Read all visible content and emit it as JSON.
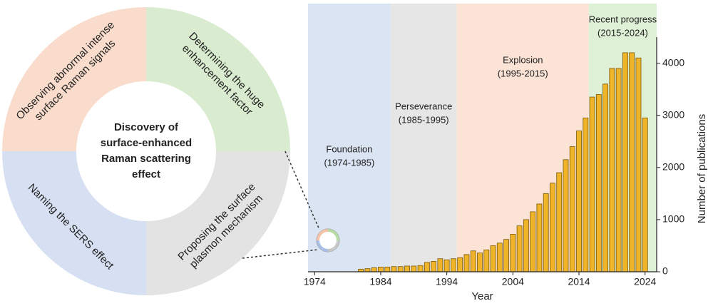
{
  "diagram": {
    "center_lines": [
      "Discovery of",
      "surface-enhanced",
      "Raman scattering",
      "effect"
    ],
    "segments": [
      {
        "lines": [
          "Observing abnormal intense",
          "surface Raman signals"
        ],
        "color": "#f9dccb"
      },
      {
        "lines": [
          "Determining the huge",
          "enhancement factor"
        ],
        "color": "#d9eccf"
      },
      {
        "lines": [
          "Proposing the surface",
          "plasmon mechanism"
        ],
        "color": "#e3e3e3"
      },
      {
        "lines": [
          "Naming the SERS effect"
        ],
        "color": "#d6e0f2"
      }
    ]
  },
  "chart_data": {
    "type": "bar",
    "x_label": "Year",
    "y_label": "Number of publications",
    "x": [
      1974,
      1975,
      1976,
      1977,
      1978,
      1979,
      1980,
      1981,
      1982,
      1983,
      1984,
      1985,
      1986,
      1987,
      1988,
      1989,
      1990,
      1991,
      1992,
      1993,
      1994,
      1995,
      1996,
      1997,
      1998,
      1999,
      2000,
      2001,
      2002,
      2003,
      2004,
      2005,
      2006,
      2007,
      2008,
      2009,
      2010,
      2011,
      2012,
      2013,
      2014,
      2015,
      2016,
      2017,
      2018,
      2019,
      2020,
      2021,
      2022,
      2023,
      2024
    ],
    "values": [
      0,
      0,
      0,
      0,
      0,
      0,
      0,
      50,
      60,
      80,
      90,
      90,
      100,
      100,
      110,
      110,
      120,
      180,
      200,
      250,
      230,
      250,
      270,
      330,
      400,
      360,
      420,
      500,
      550,
      620,
      720,
      880,
      1000,
      1150,
      1300,
      1500,
      1700,
      1900,
      2150,
      2400,
      2700,
      2950,
      3350,
      3400,
      3600,
      3900,
      3900,
      4200,
      4200,
      4100,
      2950
    ],
    "color": "#f0b429",
    "xlim": [
      1973,
      2025
    ],
    "xticks": [
      1974,
      1984,
      1994,
      2004,
      2014,
      2024
    ],
    "ylim": [
      0,
      4500
    ],
    "yticks": [
      0,
      1000,
      2000,
      3000,
      4000
    ],
    "periods": [
      {
        "label": "Foundation",
        "range_label": "(1974-1985)",
        "start": 1974,
        "end": 1985,
        "color": "#dbe4f3"
      },
      {
        "label": "Perseverance",
        "range_label": "(1985-1995)",
        "start": 1985,
        "end": 1995,
        "color": "#e6e6e6"
      },
      {
        "label": "Explosion",
        "range_label": "(1995-2015)",
        "start": 1995,
        "end": 2015,
        "color": "#fbe3d6"
      },
      {
        "label": "Recent progress",
        "range_label": "(2015-2024)",
        "start": 2015,
        "end": 2024,
        "color": "#def0d6"
      }
    ]
  }
}
